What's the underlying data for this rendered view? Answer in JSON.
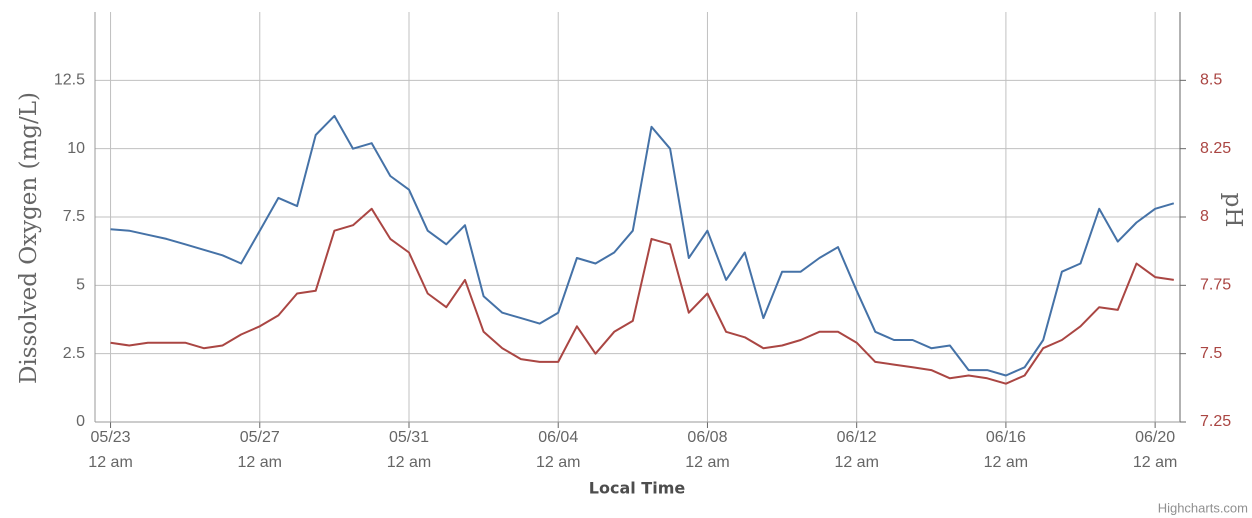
{
  "chart_data": {
    "type": "line",
    "x": [
      "05/23 12 am",
      "05/23 12 pm",
      "05/24 12 am",
      "05/24 12 pm",
      "05/25 12 am",
      "05/25 12 pm",
      "05/26 12 am",
      "05/26 12 pm",
      "05/27 12 am",
      "05/27 12 pm",
      "05/28 12 am",
      "05/28 12 pm",
      "05/29 12 am",
      "05/29 12 pm",
      "05/30 12 am",
      "05/30 12 pm",
      "05/31 12 am",
      "05/31 12 pm",
      "06/01 12 am",
      "06/01 12 pm",
      "06/02 12 am",
      "06/02 12 pm",
      "06/03 12 am",
      "06/03 12 pm",
      "06/04 12 am",
      "06/04 12 pm",
      "06/05 12 am",
      "06/05 12 pm",
      "06/06 12 am",
      "06/06 12 pm",
      "06/07 12 am",
      "06/07 12 pm",
      "06/08 12 am",
      "06/08 12 pm",
      "06/09 12 am",
      "06/09 12 pm",
      "06/10 12 am",
      "06/10 12 pm",
      "06/11 12 am",
      "06/11 12 pm",
      "06/12 12 am",
      "06/12 12 pm",
      "06/13 12 am",
      "06/13 12 pm",
      "06/14 12 am",
      "06/14 12 pm",
      "06/15 12 am",
      "06/15 12 pm",
      "06/16 12 am",
      "06/16 12 pm",
      "06/17 12 am",
      "06/17 12 pm",
      "06/18 12 am",
      "06/18 12 pm",
      "06/19 12 am",
      "06/19 12 pm",
      "06/20 12 am",
      "06/20 12 pm"
    ],
    "series": [
      {
        "name": "Dissolved Oxygen",
        "color": "#4572a7",
        "axis": "y",
        "values": [
          7.05,
          7.0,
          6.85,
          6.7,
          6.5,
          6.3,
          6.1,
          5.8,
          7.0,
          8.2,
          7.9,
          10.5,
          11.2,
          10.0,
          10.2,
          9.0,
          8.5,
          7.0,
          6.5,
          7.2,
          4.6,
          4.0,
          3.8,
          3.6,
          4.0,
          6.0,
          5.8,
          6.2,
          7.0,
          10.8,
          10.0,
          6.0,
          7.0,
          5.2,
          6.2,
          3.8,
          5.5,
          5.5,
          6.0,
          6.4,
          4.8,
          3.3,
          3.0,
          3.0,
          2.7,
          2.8,
          1.9,
          1.9,
          1.7,
          2.0,
          3.0,
          5.5,
          5.8,
          7.8,
          6.6,
          7.3,
          7.8,
          8.0
        ]
      },
      {
        "name": "pH",
        "color": "#aa4643",
        "axis": "y2",
        "values": [
          7.54,
          7.53,
          7.54,
          7.54,
          7.54,
          7.52,
          7.53,
          7.57,
          7.6,
          7.64,
          7.72,
          7.73,
          7.95,
          7.97,
          8.03,
          7.92,
          7.87,
          7.72,
          7.67,
          7.77,
          7.58,
          7.52,
          7.48,
          7.47,
          7.47,
          7.6,
          7.5,
          7.58,
          7.62,
          7.92,
          7.9,
          7.65,
          7.72,
          7.58,
          7.56,
          7.52,
          7.53,
          7.55,
          7.58,
          7.58,
          7.54,
          7.47,
          7.46,
          7.45,
          7.44,
          7.41,
          7.42,
          7.41,
          7.39,
          7.42,
          7.52,
          7.55,
          7.6,
          7.67,
          7.66,
          7.83,
          7.78,
          7.77
        ]
      }
    ],
    "xlim": [
      "05/22 2 pm",
      "06/20 4 pm"
    ],
    "xticks": [
      "05/23 12 am",
      "05/27 12 am",
      "05/31 12 am",
      "06/04 12 am",
      "06/08 12 am",
      "06/12 12 am",
      "06/16 12 am",
      "06/20 12 am"
    ],
    "ylim": [
      0,
      15
    ],
    "yticks": [
      0,
      2.5,
      5,
      7.5,
      10,
      12.5
    ],
    "y2lim": [
      7.25,
      8.75
    ],
    "y2ticks": [
      7.25,
      7.5,
      7.75,
      8,
      8.25,
      8.5
    ],
    "y_label": "Dissolved Oxygen (mg/L)",
    "y2_label": "pH",
    "x_label": "Local Time",
    "grid": true,
    "credits": "Highcharts.com"
  }
}
